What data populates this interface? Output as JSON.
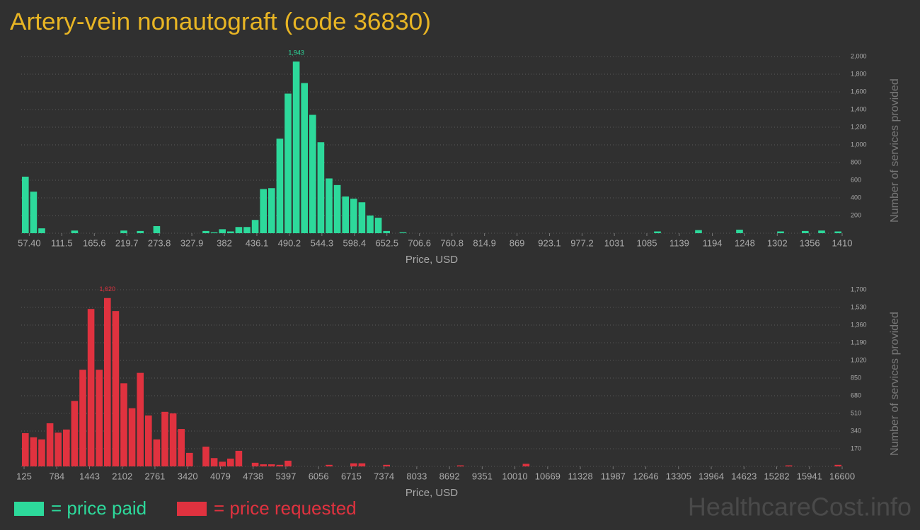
{
  "title": "Artery-vein nonautograft (code 36830)",
  "watermark": "HealthcareCost.info",
  "chart_data": [
    {
      "type": "histogram",
      "x_label": "Price, USD",
      "y_label": "Number of services provided",
      "bins": [
        44,
        57.66,
        71.32,
        84.98,
        98.64,
        112.3,
        125.96,
        139.62,
        153.28,
        166.94,
        180.6,
        194.26,
        207.92,
        221.58,
        235.24,
        248.9,
        262.56,
        276.22,
        289.88,
        303.54,
        317.2,
        330.86,
        344.52,
        358.18,
        371.84,
        385.5,
        399.16,
        412.82,
        426.48,
        440.14,
        453.8,
        467.46,
        481.12,
        494.78,
        508.44,
        522.1,
        535.76,
        549.42,
        563.08,
        576.74,
        590.4,
        604.06,
        617.72,
        631.38,
        645.04,
        658.7,
        672.36,
        686.02,
        699.68,
        713.34,
        727,
        740.66,
        754.32,
        767.98,
        781.64,
        795.3,
        808.96,
        822.62,
        836.28,
        849.94,
        863.6,
        877.26,
        890.92,
        904.58,
        918.24,
        931.9,
        945.56,
        959.22,
        972.88,
        986.54,
        1000.2,
        1013.86,
        1027.52,
        1041.18,
        1054.84,
        1068.5,
        1082.16,
        1095.82,
        1109.48,
        1123.14,
        1136.8,
        1150.46,
        1164.12,
        1177.78,
        1191.44,
        1205.1,
        1218.76,
        1232.42,
        1246.08,
        1259.74,
        1273.4,
        1287.06,
        1300.72,
        1314.38,
        1328.04,
        1341.7,
        1355.36,
        1369.02,
        1382.68,
        1396.34,
        1410
      ],
      "series": [
        {
          "name": "= price paid",
          "color": "#2dd99b",
          "values": [
            640,
            470,
            55,
            0,
            0,
            0,
            30,
            0,
            0,
            0,
            0,
            0,
            30,
            0,
            25,
            0,
            80,
            0,
            0,
            0,
            0,
            0,
            25,
            10,
            45,
            20,
            70,
            70,
            150,
            500,
            510,
            1070,
            1580,
            1943,
            1700,
            1340,
            1030,
            620,
            545,
            415,
            390,
            350,
            200,
            175,
            25,
            0,
            10,
            0,
            0,
            0,
            0,
            0,
            0,
            0,
            0,
            0,
            0,
            0,
            0,
            0,
            0,
            0,
            0,
            0,
            0,
            0,
            0,
            0,
            0,
            0,
            0,
            0,
            0,
            0,
            0,
            0,
            0,
            20,
            0,
            0,
            0,
            0,
            35,
            0,
            0,
            0,
            0,
            40,
            0,
            0,
            0,
            0,
            20,
            0,
            0,
            25,
            0,
            30,
            0,
            20
          ],
          "value_labels": [
            null,
            null,
            null,
            null,
            null,
            null,
            null,
            null,
            null,
            null,
            null,
            null,
            null,
            null,
            null,
            null,
            null,
            null,
            null,
            null,
            null,
            null,
            null,
            null,
            null,
            null,
            null,
            null,
            null,
            null,
            null,
            null,
            null,
            "1,943",
            null,
            null,
            null,
            null,
            null,
            null,
            null,
            null,
            null,
            null,
            null,
            null,
            null,
            null,
            null,
            null,
            null,
            null,
            null,
            null,
            null,
            null,
            null,
            null,
            null,
            null,
            null,
            null,
            null,
            null,
            null,
            null,
            null,
            null,
            null,
            null,
            null,
            null,
            null,
            null,
            null,
            null,
            null,
            null,
            null,
            null,
            null,
            null,
            null,
            null,
            null,
            null,
            null,
            null,
            null,
            null,
            null,
            null,
            null,
            null,
            null,
            null,
            null,
            null,
            null,
            null
          ]
        }
      ],
      "xlim": [
        44,
        1410
      ],
      "xticks": [
        {
          "value": 57.4,
          "label": "57.40"
        },
        111.5,
        165.6,
        219.7,
        273.8,
        327.9,
        382,
        436.1,
        490.2,
        544.3,
        598.4,
        652.5,
        706.6,
        760.8,
        814.9,
        869,
        923.1,
        977.2,
        1031,
        1085,
        1139,
        1194,
        1248,
        1302,
        1356,
        1410
      ],
      "ylim": [
        0,
        2000
      ],
      "yticks": [
        200,
        400,
        600,
        800,
        {
          "value": 1000,
          "label": "1,000"
        },
        {
          "value": 1200,
          "label": "1,200"
        },
        {
          "value": 1400,
          "label": "1,400"
        },
        {
          "value": 1600,
          "label": "1,600"
        },
        {
          "value": 1800,
          "label": "1,800"
        },
        {
          "value": 2000,
          "label": "2,000"
        }
      ],
      "grid": true
    },
    {
      "type": "histogram",
      "x_label": "Price, USD",
      "y_label": "Number of services provided",
      "bins": [
        68,
        233.32,
        398.64,
        563.96,
        729.28,
        894.6,
        1059.92,
        1225.24,
        1390.56,
        1555.88,
        1721.2,
        1886.52,
        2051.84,
        2217.16,
        2382.48,
        2547.8,
        2713.12,
        2878.44,
        3043.76,
        3209.08,
        3374.4,
        3539.72,
        3705.04,
        3870.36,
        4035.68,
        4201,
        4366.32,
        4531.64,
        4696.96,
        4862.28,
        5027.6,
        5192.92,
        5358.24,
        5523.56,
        5688.88,
        5854.2,
        6019.52,
        6184.84,
        6350.16,
        6515.48,
        6680.8,
        6846.12,
        7011.44,
        7176.76,
        7342.08,
        7507.4,
        7672.72,
        7838.04,
        8003.36,
        8168.68,
        8334,
        8499.32,
        8664.64,
        8829.96,
        8995.28,
        9160.6,
        9325.92,
        9491.24,
        9656.56,
        9821.88,
        9987.2,
        10152.52,
        10317.84,
        10483.16,
        10648.48,
        10813.8,
        10979.12,
        11144.44,
        11309.76,
        11475.08,
        11640.4,
        11805.72,
        11971.04,
        12136.36,
        12301.68,
        12467,
        12632.32,
        12797.64,
        12962.96,
        13128.28,
        13293.6,
        13458.92,
        13624.24,
        13789.56,
        13954.88,
        14120.2,
        14285.52,
        14450.84,
        14616.16,
        14781.48,
        14946.8,
        15112.12,
        15277.44,
        15442.76,
        15608.08,
        15773.4,
        15938.72,
        16104.04,
        16269.36,
        16434.68,
        16600
      ],
      "series": [
        {
          "name": "= price requested",
          "color": "#e0323f",
          "values": [
            320,
            280,
            260,
            415,
            325,
            355,
            630,
            930,
            1515,
            930,
            1620,
            1495,
            800,
            560,
            900,
            490,
            260,
            525,
            510,
            360,
            130,
            0,
            190,
            80,
            45,
            75,
            150,
            0,
            35,
            20,
            20,
            15,
            55,
            0,
            0,
            0,
            0,
            15,
            0,
            0,
            30,
            30,
            0,
            0,
            15,
            0,
            0,
            0,
            0,
            0,
            0,
            0,
            0,
            10,
            0,
            0,
            0,
            0,
            0,
            0,
            0,
            25,
            0,
            0,
            0,
            0,
            0,
            0,
            0,
            0,
            0,
            0,
            0,
            0,
            0,
            0,
            0,
            0,
            0,
            0,
            0,
            0,
            0,
            0,
            0,
            0,
            0,
            0,
            0,
            0,
            0,
            0,
            0,
            10,
            0,
            0,
            0,
            0,
            0,
            15
          ],
          "value_labels": [
            null,
            null,
            null,
            null,
            null,
            null,
            null,
            null,
            null,
            null,
            "1,620",
            null,
            null,
            null,
            null,
            null,
            null,
            null,
            null,
            null,
            null,
            null,
            null,
            null,
            null,
            null,
            null,
            null,
            null,
            null,
            null,
            null,
            null,
            null,
            null,
            null,
            null,
            null,
            null,
            null,
            null,
            null,
            null,
            null,
            null,
            null,
            null,
            null,
            null,
            null,
            null,
            null,
            null,
            null,
            null,
            null,
            null,
            null,
            null,
            null,
            null,
            null,
            null,
            null,
            null,
            null,
            null,
            null,
            null,
            null,
            null,
            null,
            null,
            null,
            null,
            null,
            null,
            null,
            null,
            null,
            null,
            null,
            null,
            null,
            null,
            null,
            null,
            null,
            null,
            null,
            null,
            null,
            null,
            null,
            null,
            null,
            null,
            null,
            null,
            null
          ]
        }
      ],
      "xlim": [
        68,
        16600
      ],
      "xticks": [
        125,
        784,
        1443,
        2102,
        2761,
        3420,
        4079,
        4738,
        5397,
        6056,
        6715,
        7374,
        8033,
        8692,
        9351,
        10010,
        10669,
        11328,
        11987,
        12646,
        13305,
        13964,
        14623,
        15282,
        15941,
        16600
      ],
      "ylim": [
        0,
        1700
      ],
      "yticks": [
        170,
        340,
        510,
        680,
        850,
        {
          "value": 1020,
          "label": "1,020"
        },
        {
          "value": 1190,
          "label": "1,190"
        },
        {
          "value": 1360,
          "label": "1,360"
        },
        {
          "value": 1530,
          "label": "1,530"
        },
        {
          "value": 1700,
          "label": "1,700"
        }
      ],
      "grid": true
    }
  ]
}
